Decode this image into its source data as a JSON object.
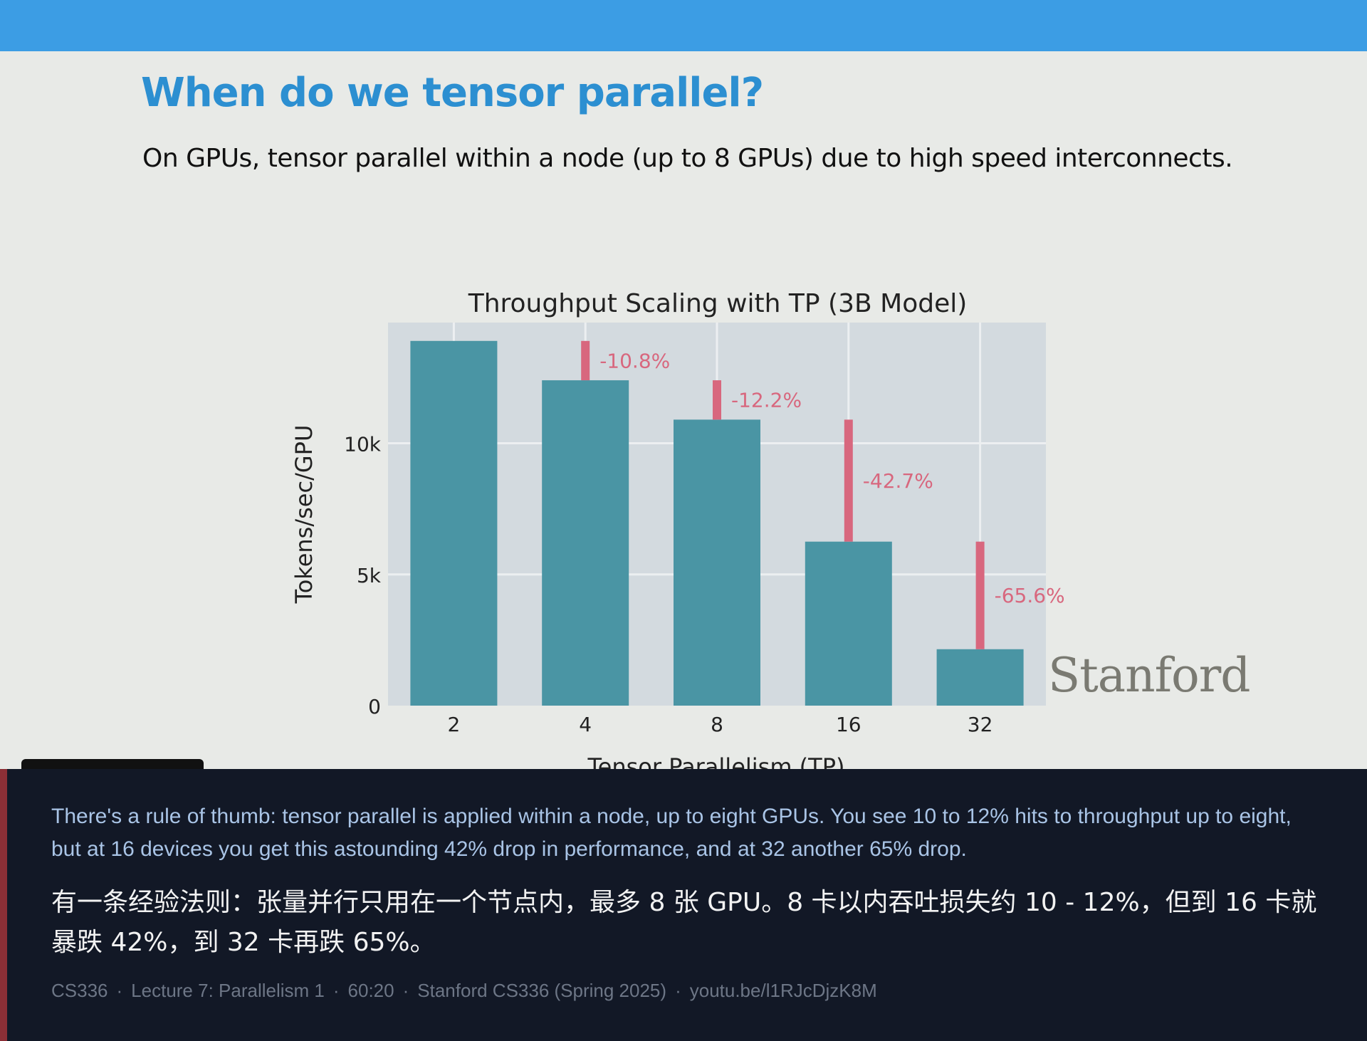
{
  "slide": {
    "title": "When do we tensor parallel?",
    "subtitle": "On GPUs, tensor parallel within a node (up to 8 GPUs) due to high speed interconnects.",
    "logo_text": "Stanford"
  },
  "chart_data": {
    "type": "bar",
    "title": "Throughput Scaling with TP (3B Model)",
    "xlabel": "Tensor Parallelism (TP)",
    "ylabel": "Tokens/sec/GPU",
    "categories": [
      "2",
      "4",
      "8",
      "16",
      "32"
    ],
    "values": [
      13900,
      12400,
      10900,
      6250,
      2150
    ],
    "drops": [
      "",
      "-10.8%",
      "-12.2%",
      "-42.7%",
      "-65.6%"
    ],
    "ylim": [
      0,
      14600
    ],
    "yticks": [
      0,
      5000,
      10000
    ],
    "ytick_labels": [
      "0",
      "5k",
      "10k"
    ],
    "grid": true,
    "colors": {
      "bar": "#4a95a4",
      "drop": "#d8677e",
      "plot_bg": "#d3dadf",
      "grid": "#eceff1"
    }
  },
  "player": {
    "timestamp_badge": "Lecture 7 · 60:20",
    "controls": [
      "prev-icon",
      "pen-icon",
      "zoom-icon",
      "cc-icon",
      "camera-icon",
      "more-icon",
      "next-icon"
    ]
  },
  "captions": {
    "en": "There's a rule of thumb: tensor parallel is applied within a node, up to eight GPUs. You see 10 to 12% hits to throughput up to eight, but at 16 devices you get this astounding 42% drop in performance, and at 32 another 65% drop.",
    "zh": "有一条经验法则：张量并行只用在一个节点内，最多 8 张 GPU。8 卡以内吞吐损失约 10 - 12%，但到 16 卡就暴跌 42%，到 32 卡再跌 65%。",
    "meta": {
      "course": "CS336",
      "lecture": "Lecture 7: Parallelism 1",
      "time": "60:20",
      "source": "Stanford CS336 (Spring 2025)",
      "link": "youtu.be/l1RJcDjzK8M"
    }
  }
}
